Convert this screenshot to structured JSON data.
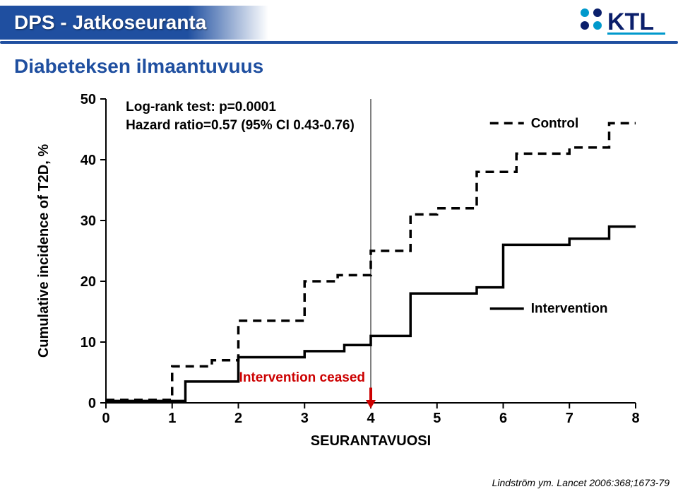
{
  "header": {
    "title": "DPS - Jatkoseuranta",
    "banner_bg": "#1f4fa0",
    "banner_text_color": "#ffffff",
    "rule_color": "#1f4fa0",
    "logo": {
      "colors": {
        "cyan": "#0099cc",
        "navy": "#0b1f6b"
      },
      "alt": "KTL"
    }
  },
  "subtitle": {
    "text": "Diabeteksen ilmaantuvuus",
    "color": "#1f4fa0"
  },
  "chart": {
    "type": "step-line",
    "ylabel": "Cumulative incidence of T2D, %",
    "xlabel": "SEURANTAVUOSI",
    "label_fontsize": 20,
    "tick_fontsize": 20,
    "ylim": [
      0,
      50
    ],
    "yticks": [
      0,
      10,
      20,
      30,
      40,
      50
    ],
    "xlim": [
      0,
      8
    ],
    "xticks": [
      0,
      1,
      2,
      3,
      4,
      5,
      6,
      7,
      8
    ],
    "axis_color": "#000000",
    "axis_width": 2,
    "tick_length": 8,
    "background_color": "#ffffff",
    "stats": {
      "line1": "Log-rank test: p=0.0001",
      "line2": "Hazard ratio=0.57 (95% CI 0.43-0.76)",
      "fontsize": 19,
      "color": "#000000"
    },
    "vline": {
      "x": 4,
      "color": "#808080",
      "width": 2
    },
    "intervention_ceased": {
      "label": "Intervention ceased",
      "x": 4,
      "color": "#cc0000",
      "fontsize": 19,
      "arrow_color": "#cc0000"
    },
    "legend": {
      "control": {
        "label": "Control",
        "dash": true
      },
      "intervention": {
        "label": "Intervention",
        "dash": false
      },
      "fontsize": 19
    },
    "line_color": "#000000",
    "line_width": 3.5,
    "dash_pattern": "12,8",
    "series": {
      "control": {
        "dash": true,
        "points": [
          [
            0.0,
            0.5
          ],
          [
            1.0,
            0.5
          ],
          [
            1.0,
            6
          ],
          [
            1.6,
            6
          ],
          [
            1.6,
            7
          ],
          [
            2.0,
            7
          ],
          [
            2.0,
            13.5
          ],
          [
            3.0,
            13.5
          ],
          [
            3.0,
            20
          ],
          [
            3.5,
            20
          ],
          [
            3.5,
            21
          ],
          [
            4.0,
            21
          ],
          [
            4.0,
            25
          ],
          [
            4.6,
            25
          ],
          [
            4.6,
            31
          ],
          [
            5.0,
            31
          ],
          [
            5.0,
            32
          ],
          [
            5.6,
            32
          ],
          [
            5.6,
            38
          ],
          [
            6.2,
            38
          ],
          [
            6.2,
            41
          ],
          [
            7.0,
            41
          ],
          [
            7.0,
            42
          ],
          [
            7.6,
            42
          ],
          [
            7.6,
            46
          ],
          [
            8.0,
            46
          ]
        ]
      },
      "intervention": {
        "dash": false,
        "points": [
          [
            0.0,
            0.3
          ],
          [
            1.2,
            0.3
          ],
          [
            1.2,
            3.5
          ],
          [
            2.0,
            3.5
          ],
          [
            2.0,
            7.5
          ],
          [
            3.0,
            7.5
          ],
          [
            3.0,
            8.5
          ],
          [
            3.6,
            8.5
          ],
          [
            3.6,
            9.5
          ],
          [
            4.0,
            9.5
          ],
          [
            4.0,
            11
          ],
          [
            4.6,
            11
          ],
          [
            4.6,
            18
          ],
          [
            5.6,
            18
          ],
          [
            5.6,
            19
          ],
          [
            6.0,
            19
          ],
          [
            6.0,
            26
          ],
          [
            7.0,
            26
          ],
          [
            7.0,
            27
          ],
          [
            7.6,
            27
          ],
          [
            7.6,
            29
          ],
          [
            8.0,
            29
          ]
        ]
      }
    }
  },
  "citation": "Lindström ym. Lancet 2006:368;1673-79"
}
